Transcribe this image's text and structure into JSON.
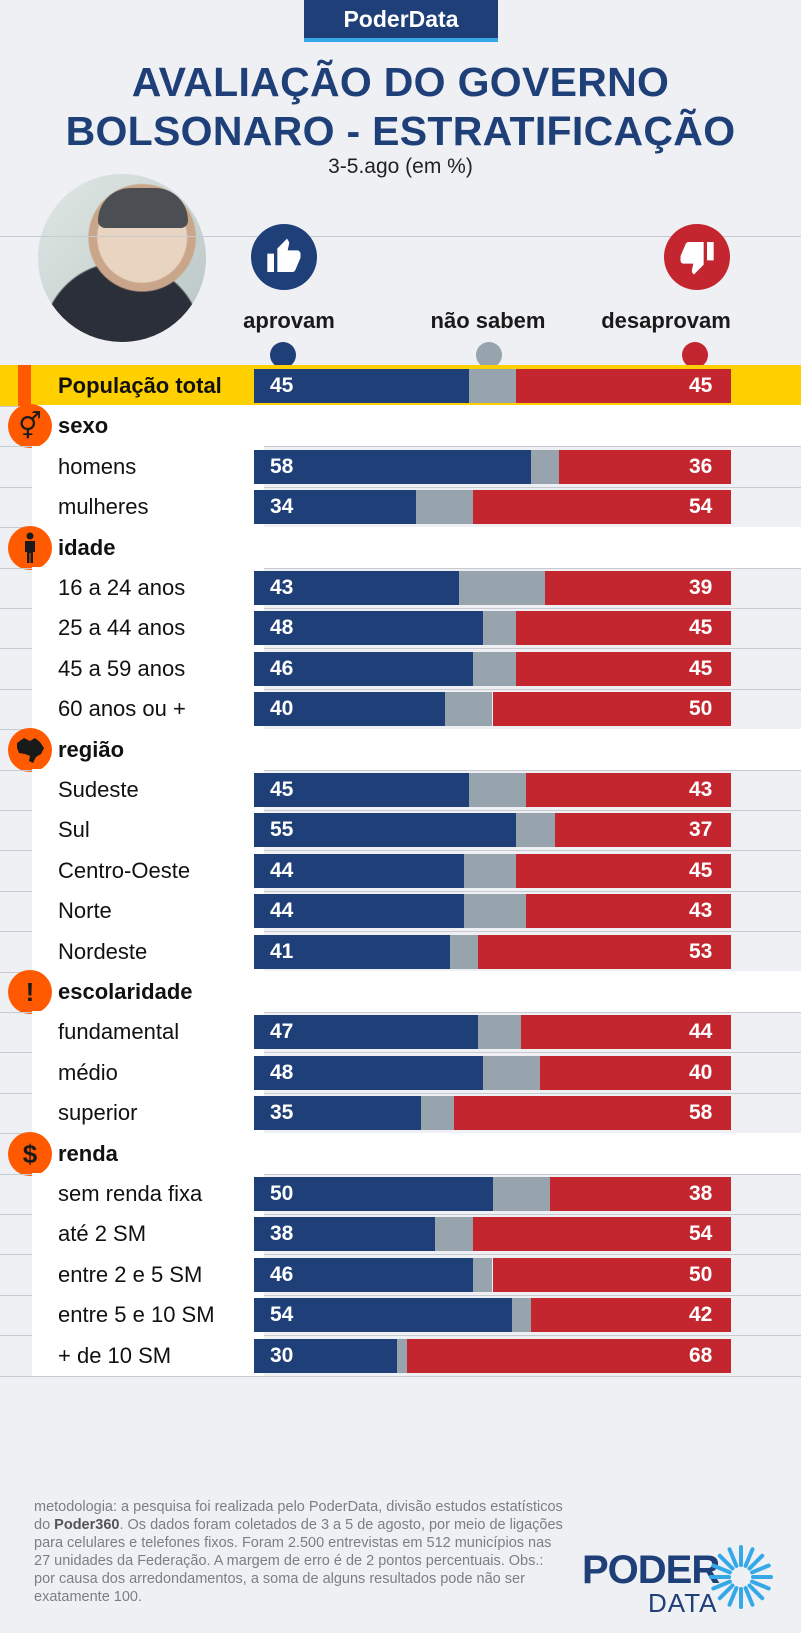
{
  "brand": "PoderData",
  "title_line1": "AVALIAÇÃO DO GOVERNO",
  "title_line2": "BOLSONARO - ESTRATIFICAÇÃO",
  "subtitle": "3-5.ago (em %)",
  "columns": {
    "approve": "aprovam",
    "unsure": "não sabem",
    "disapprove": "desaprovam"
  },
  "colors": {
    "approve": "#1f3f78",
    "unsure": "#97a3ad",
    "disapprove": "#c4262f",
    "highlight": "#ffd000",
    "accent": "#ff5a00"
  },
  "icons": {
    "approve": "thumbs-up-icon",
    "disapprove": "thumbs-down-icon",
    "sexo": "gender-icon",
    "idade": "person-icon",
    "região": "brazil-map-icon",
    "escolaridade": "exclamation-icon",
    "renda": "dollar-icon"
  },
  "chart_data": {
    "type": "bar",
    "stacked": true,
    "orientation": "horizontal",
    "series": [
      {
        "name": "aprovam"
      },
      {
        "name": "não sabem"
      },
      {
        "name": "desaprovam"
      }
    ],
    "rows": [
      {
        "kind": "total",
        "label": "População total",
        "approve": 45,
        "disapprove": 45
      },
      {
        "kind": "category",
        "label": "sexo",
        "icon": "sexo"
      },
      {
        "kind": "item",
        "label": "homens",
        "approve": 58,
        "disapprove": 36
      },
      {
        "kind": "item",
        "label": "mulheres",
        "approve": 34,
        "disapprove": 54
      },
      {
        "kind": "category",
        "label": "idade",
        "icon": "idade"
      },
      {
        "kind": "item",
        "label": "16 a 24 anos",
        "approve": 43,
        "disapprove": 39
      },
      {
        "kind": "item",
        "label": "25 a 44 anos",
        "approve": 48,
        "disapprove": 45
      },
      {
        "kind": "item",
        "label": "45 a 59 anos",
        "approve": 46,
        "disapprove": 45
      },
      {
        "kind": "item",
        "label": "60 anos ou +",
        "approve": 40,
        "disapprove": 50
      },
      {
        "kind": "category",
        "label": "região",
        "icon": "região"
      },
      {
        "kind": "item",
        "label": "Sudeste",
        "approve": 45,
        "disapprove": 43
      },
      {
        "kind": "item",
        "label": "Sul",
        "approve": 55,
        "disapprove": 37
      },
      {
        "kind": "item",
        "label": "Centro-Oeste",
        "approve": 44,
        "disapprove": 45
      },
      {
        "kind": "item",
        "label": "Norte",
        "approve": 44,
        "disapprove": 43
      },
      {
        "kind": "item",
        "label": "Nordeste",
        "approve": 41,
        "disapprove": 53
      },
      {
        "kind": "category",
        "label": "escolaridade",
        "icon": "escolaridade"
      },
      {
        "kind": "item",
        "label": "fundamental",
        "approve": 47,
        "disapprove": 44
      },
      {
        "kind": "item",
        "label": "médio",
        "approve": 48,
        "disapprove": 40
      },
      {
        "kind": "item",
        "label": "superior",
        "approve": 35,
        "disapprove": 58
      },
      {
        "kind": "category",
        "label": "renda",
        "icon": "renda"
      },
      {
        "kind": "item",
        "label": "sem renda fixa",
        "approve": 50,
        "disapprove": 38
      },
      {
        "kind": "item",
        "label": "até 2 SM",
        "approve": 38,
        "disapprove": 54
      },
      {
        "kind": "item",
        "label": "entre 2 e 5 SM",
        "approve": 46,
        "disapprove": 50
      },
      {
        "kind": "item",
        "label": "entre 5 e 10 SM",
        "approve": 54,
        "disapprove": 42
      },
      {
        "kind": "item",
        "label": "+ de 10 SM",
        "approve": 30,
        "disapprove": 68
      }
    ]
  },
  "footer": {
    "note_before": "metodologia: a pesquisa foi realizada pelo PoderData, divisão estudos estatísticos do ",
    "note_bold": "Poder360",
    "note_after": ". Os dados foram coletados de 3 a 5 de agosto, por meio de ligações para celulares e telefones fixos. Foram 2.500 entrevistas em 512 municípios nas 27 unidades da Federação. A margem de erro é de 2 pontos percentuais. Obs.: por causa dos arredondamentos, a soma de alguns resultados pode não ser exatamente 100.",
    "logo_line1": "PODER",
    "logo_line2": "DATA"
  }
}
